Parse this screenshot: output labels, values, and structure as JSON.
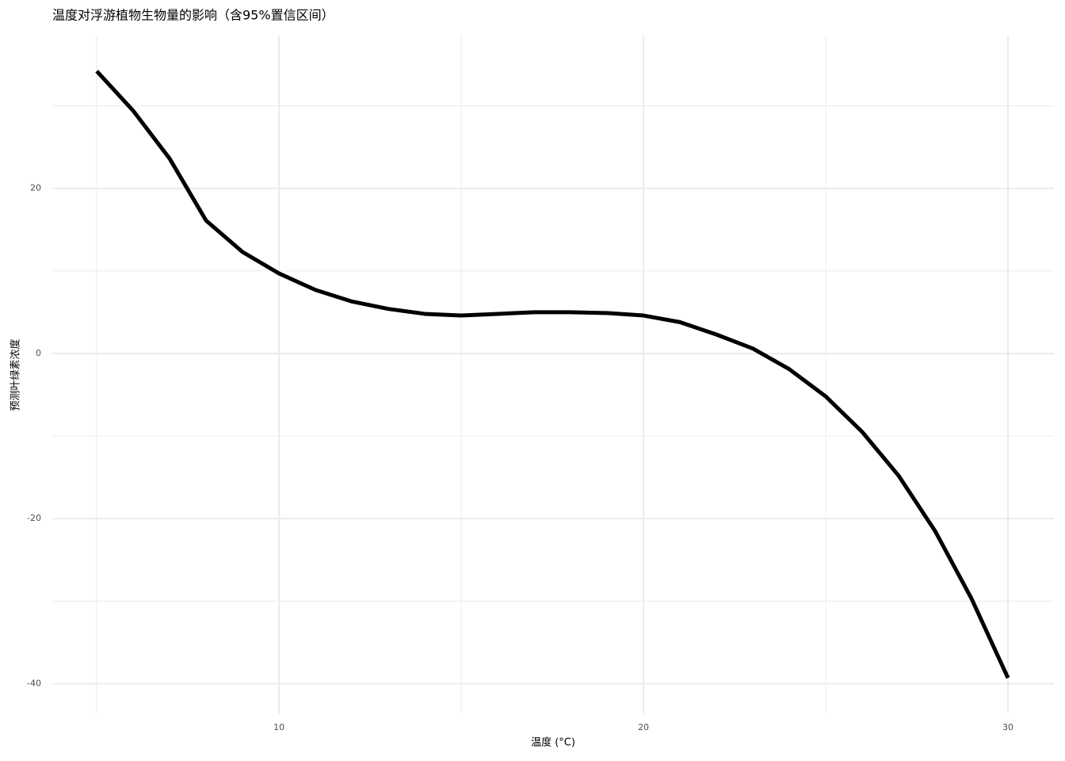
{
  "chart_data": {
    "type": "line",
    "title": "温度对浮游植物生物量的影响（含95%置信区间）",
    "x_label": "温度 (°C)",
    "y_label": "预测叶绿素浓度",
    "x": [
      5,
      6,
      7,
      8,
      9,
      10,
      11,
      12,
      13,
      14,
      15,
      16,
      17,
      18,
      19,
      20,
      21,
      22,
      23,
      24,
      25,
      26,
      27,
      28,
      29,
      30
    ],
    "values": [
      34.2,
      29.4,
      23.6,
      16.1,
      12.3,
      9.7,
      7.7,
      6.3,
      5.4,
      4.8,
      4.6,
      4.8,
      5.0,
      5.0,
      4.9,
      4.6,
      3.8,
      2.3,
      0.6,
      -1.9,
      -5.2,
      -9.5,
      -14.8,
      -21.5,
      -29.7,
      -39.3
    ],
    "color": "#000000",
    "xlim": [
      3.78,
      31.26
    ],
    "ylim": [
      -43.6,
      38.5
    ],
    "xticks": [
      10,
      20,
      30
    ],
    "yticks": [
      -40,
      -20,
      0,
      20
    ],
    "x_minor_ticks": [
      5,
      15,
      25
    ],
    "y_minor_ticks": [
      -30,
      -10,
      10,
      30
    ],
    "grid": true
  }
}
